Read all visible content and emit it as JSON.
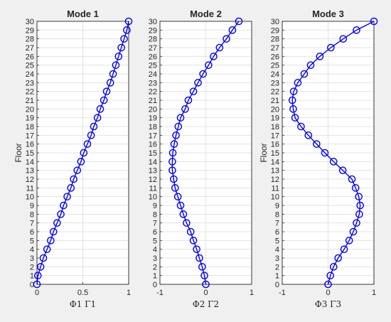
{
  "figure": {
    "background": "#f0f0f0"
  },
  "chart_data": [
    {
      "type": "line",
      "title": "Mode 1",
      "xlabel": "Φ1 Γ1",
      "ylabel": "Floor",
      "xlim": [
        0,
        1
      ],
      "ylim": [
        0,
        30
      ],
      "xticks": [
        "0",
        "0.5",
        "1"
      ],
      "yticks": [
        "0",
        "1",
        "2",
        "3",
        "4",
        "5",
        "6",
        "7",
        "8",
        "9",
        "10",
        "11",
        "12",
        "13",
        "14",
        "15",
        "16",
        "17",
        "18",
        "19",
        "20",
        "21",
        "22",
        "23",
        "24",
        "25",
        "26",
        "27",
        "28",
        "29",
        "30"
      ],
      "grid": true,
      "color": "#0000ff",
      "marker": "circle",
      "series": [
        {
          "y": [
            0,
            1,
            2,
            3,
            4,
            5,
            6,
            7,
            8,
            9,
            10,
            11,
            12,
            13,
            14,
            15,
            16,
            17,
            18,
            19,
            20,
            21,
            22,
            23,
            24,
            25,
            26,
            27,
            28,
            29,
            30
          ],
          "x": [
            0,
            0.01,
            0.04,
            0.07,
            0.11,
            0.15,
            0.18,
            0.22,
            0.26,
            0.29,
            0.33,
            0.37,
            0.4,
            0.44,
            0.48,
            0.51,
            0.55,
            0.59,
            0.62,
            0.66,
            0.69,
            0.73,
            0.76,
            0.8,
            0.83,
            0.86,
            0.89,
            0.92,
            0.95,
            0.98,
            1.0
          ]
        }
      ]
    },
    {
      "type": "line",
      "title": "Mode 2",
      "xlabel": "Φ2 Γ2",
      "ylabel": "",
      "xlim": [
        -1,
        1
      ],
      "ylim": [
        0,
        30
      ],
      "xticks": [
        "-1",
        "0",
        "1"
      ],
      "yticks": [
        "0",
        "1",
        "2",
        "3",
        "4",
        "5",
        "6",
        "7",
        "8",
        "9",
        "10",
        "11",
        "12",
        "13",
        "14",
        "15",
        "16",
        "17",
        "18",
        "19",
        "20",
        "21",
        "22",
        "23",
        "24",
        "25",
        "26",
        "27",
        "28",
        "29",
        "30"
      ],
      "grid": true,
      "color": "#0000ff",
      "marker": "circle",
      "series": [
        {
          "y": [
            0,
            1,
            2,
            3,
            4,
            5,
            6,
            7,
            8,
            9,
            10,
            11,
            12,
            13,
            14,
            15,
            16,
            17,
            18,
            19,
            20,
            21,
            22,
            23,
            24,
            25,
            26,
            27,
            28,
            29,
            30
          ],
          "x": [
            0,
            -0.03,
            -0.08,
            -0.14,
            -0.2,
            -0.27,
            -0.33,
            -0.42,
            -0.49,
            -0.55,
            -0.61,
            -0.67,
            -0.7,
            -0.73,
            -0.73,
            -0.72,
            -0.69,
            -0.65,
            -0.6,
            -0.55,
            -0.45,
            -0.38,
            -0.27,
            -0.17,
            -0.06,
            0.06,
            0.17,
            0.3,
            0.45,
            0.58,
            0.72
          ]
        }
      ]
    },
    {
      "type": "line",
      "title": "Mode 3",
      "xlabel": "Φ3 Γ3",
      "ylabel": "Floor",
      "xlim": [
        -1,
        1
      ],
      "ylim": [
        0,
        30
      ],
      "xticks": [
        "-1",
        "0",
        "1"
      ],
      "yticks": [
        "0",
        "1",
        "2",
        "3",
        "4",
        "5",
        "6",
        "7",
        "8",
        "9",
        "10",
        "11",
        "12",
        "13",
        "14",
        "15",
        "16",
        "17",
        "18",
        "19",
        "20",
        "21",
        "22",
        "23",
        "24",
        "25",
        "26",
        "27",
        "28",
        "29",
        "30"
      ],
      "grid": true,
      "color": "#0000ff",
      "marker": "circle",
      "series": [
        {
          "y": [
            0,
            1,
            2,
            3,
            4,
            5,
            6,
            7,
            8,
            9,
            10,
            11,
            12,
            13,
            14,
            15,
            16,
            17,
            18,
            19,
            20,
            21,
            22,
            23,
            24,
            25,
            26,
            27,
            28,
            29,
            30
          ],
          "x": [
            0,
            0.05,
            0.12,
            0.22,
            0.35,
            0.46,
            0.55,
            0.62,
            0.68,
            0.7,
            0.67,
            0.6,
            0.52,
            0.32,
            0.12,
            -0.07,
            -0.25,
            -0.43,
            -0.59,
            -0.72,
            -0.76,
            -0.78,
            -0.75,
            -0.66,
            -0.52,
            -0.38,
            -0.18,
            0.06,
            0.33,
            0.62,
            1.0
          ]
        }
      ]
    }
  ]
}
